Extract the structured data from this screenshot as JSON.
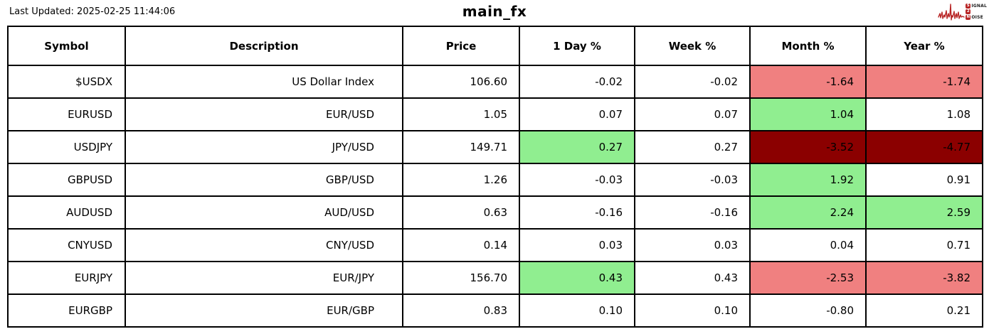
{
  "page": {
    "last_updated": "Last Updated: 2025-02-25 11:44:06",
    "title": "main_fx"
  },
  "logo": {
    "line1_badge": "S",
    "line1_text": "IGNAL",
    "line2_badge": "2",
    "line3_badge": "N",
    "line3_text": "OISE",
    "color": "#b82525"
  },
  "colors": {
    "positive": "#90ee90",
    "negative": "#f08080",
    "negative_strong": "#8b0000",
    "border": "#000000"
  },
  "table": {
    "columns": [
      "Symbol",
      "Description",
      "Price",
      "1 Day %",
      "Week %",
      "Month %",
      "Year %"
    ],
    "field_names": [
      "symbol",
      "description",
      "price",
      "day-pct",
      "week-pct",
      "month-pct",
      "year-pct"
    ],
    "rows": [
      {
        "cells": [
          "$USDX",
          "US Dollar Index",
          "106.60",
          "-0.02",
          "-0.02",
          "-1.64",
          "-1.74"
        ],
        "bg": [
          "",
          "",
          "",
          "",
          "",
          "neg",
          "neg"
        ]
      },
      {
        "cells": [
          "EURUSD",
          "EUR/USD",
          "1.05",
          "0.07",
          "0.07",
          "1.04",
          "1.08"
        ],
        "bg": [
          "",
          "",
          "",
          "",
          "",
          "pos",
          ""
        ]
      },
      {
        "cells": [
          "USDJPY",
          "JPY/USD",
          "149.71",
          "0.27",
          "0.27",
          "-3.52",
          "-4.77"
        ],
        "bg": [
          "",
          "",
          "",
          "pos",
          "",
          "negs",
          "negs"
        ]
      },
      {
        "cells": [
          "GBPUSD",
          "GBP/USD",
          "1.26",
          "-0.03",
          "-0.03",
          "1.92",
          "0.91"
        ],
        "bg": [
          "",
          "",
          "",
          "",
          "",
          "pos",
          ""
        ]
      },
      {
        "cells": [
          "AUDUSD",
          "AUD/USD",
          "0.63",
          "-0.16",
          "-0.16",
          "2.24",
          "2.59"
        ],
        "bg": [
          "",
          "",
          "",
          "",
          "",
          "pos",
          "pos"
        ]
      },
      {
        "cells": [
          "CNYUSD",
          "CNY/USD",
          "0.14",
          "0.03",
          "0.03",
          "0.04",
          "0.71"
        ],
        "bg": [
          "",
          "",
          "",
          "",
          "",
          "",
          ""
        ]
      },
      {
        "cells": [
          "EURJPY",
          "EUR/JPY",
          "156.70",
          "0.43",
          "0.43",
          "-2.53",
          "-3.82"
        ],
        "bg": [
          "",
          "",
          "",
          "pos",
          "",
          "neg",
          "neg"
        ]
      },
      {
        "cells": [
          "EURGBP",
          "EUR/GBP",
          "0.83",
          "0.10",
          "0.10",
          "-0.80",
          "0.21"
        ],
        "bg": [
          "",
          "",
          "",
          "",
          "",
          "",
          ""
        ]
      }
    ]
  },
  "chart_data": {
    "type": "table",
    "title": "main_fx",
    "columns": [
      "Symbol",
      "Description",
      "Price",
      "1 Day %",
      "Week %",
      "Month %",
      "Year %"
    ],
    "rows": [
      [
        "$USDX",
        "US Dollar Index",
        106.6,
        -0.02,
        -0.02,
        -1.64,
        -1.74
      ],
      [
        "EURUSD",
        "EUR/USD",
        1.05,
        0.07,
        0.07,
        1.04,
        1.08
      ],
      [
        "USDJPY",
        "JPY/USD",
        149.71,
        0.27,
        0.27,
        -3.52,
        -4.77
      ],
      [
        "GBPUSD",
        "GBP/USD",
        1.26,
        -0.03,
        -0.03,
        1.92,
        0.91
      ],
      [
        "AUDUSD",
        "AUD/USD",
        0.63,
        -0.16,
        -0.16,
        2.24,
        2.59
      ],
      [
        "CNYUSD",
        "CNY/USD",
        0.14,
        0.03,
        0.03,
        0.04,
        0.71
      ],
      [
        "EURJPY",
        "EUR/JPY",
        156.7,
        0.43,
        0.43,
        -2.53,
        -3.82
      ],
      [
        "EURGBP",
        "EUR/GBP",
        0.83,
        0.1,
        0.1,
        -0.8,
        0.21
      ]
    ]
  }
}
